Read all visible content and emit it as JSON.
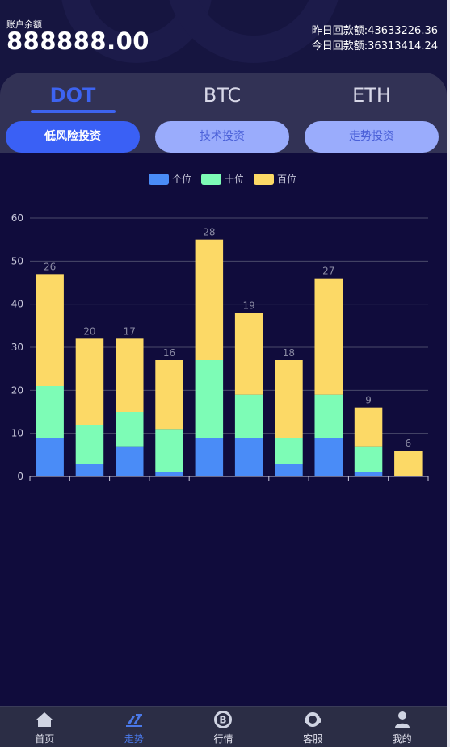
{
  "account": {
    "balance_label": "账户余额",
    "balance_value": "888888.00",
    "yesterday_label": "昨日回款额:",
    "yesterday_value": "43633226.36",
    "today_label": "今日回款额:",
    "today_value": "36313414.24"
  },
  "tabs": [
    {
      "label": "DOT",
      "active": true
    },
    {
      "label": "BTC",
      "active": false
    },
    {
      "label": "ETH",
      "active": false
    }
  ],
  "modes": [
    {
      "label": "低风险投资",
      "active": true
    },
    {
      "label": "技术投资",
      "active": false
    },
    {
      "label": "走势投资",
      "active": false
    }
  ],
  "colors": {
    "accent": "#3d63f0",
    "series_ones": "#4a8cf7",
    "series_tens": "#7dfcb6",
    "series_hundreds": "#fcd966"
  },
  "chart_data": {
    "type": "bar",
    "stacked": true,
    "categories": [
      "",
      "",
      "",
      "",
      "",
      "",
      "",
      "",
      "",
      ""
    ],
    "series": [
      {
        "name": "个位",
        "color": "#4a8cf7",
        "values": [
          9,
          3,
          7,
          1,
          9,
          9,
          3,
          9,
          1,
          0
        ]
      },
      {
        "name": "十位",
        "color": "#7dfcb6",
        "values": [
          12,
          9,
          8,
          10,
          18,
          10,
          6,
          10,
          6,
          0
        ]
      },
      {
        "name": "百位",
        "color": "#fcd966",
        "values": [
          26,
          20,
          17,
          16,
          28,
          19,
          18,
          27,
          9,
          6
        ]
      }
    ],
    "ylim": [
      0,
      60
    ],
    "yticks": [
      0,
      10,
      20,
      30,
      40,
      50,
      60
    ],
    "grid": true,
    "legend_position": "top-center"
  },
  "nav": [
    {
      "label": "首页",
      "icon": "home-icon",
      "active": false
    },
    {
      "label": "走势",
      "icon": "trend-icon",
      "active": true
    },
    {
      "label": "行情",
      "icon": "bitcoin-icon",
      "active": false
    },
    {
      "label": "客服",
      "icon": "support-icon",
      "active": false
    },
    {
      "label": "我的",
      "icon": "user-icon",
      "active": false
    }
  ]
}
